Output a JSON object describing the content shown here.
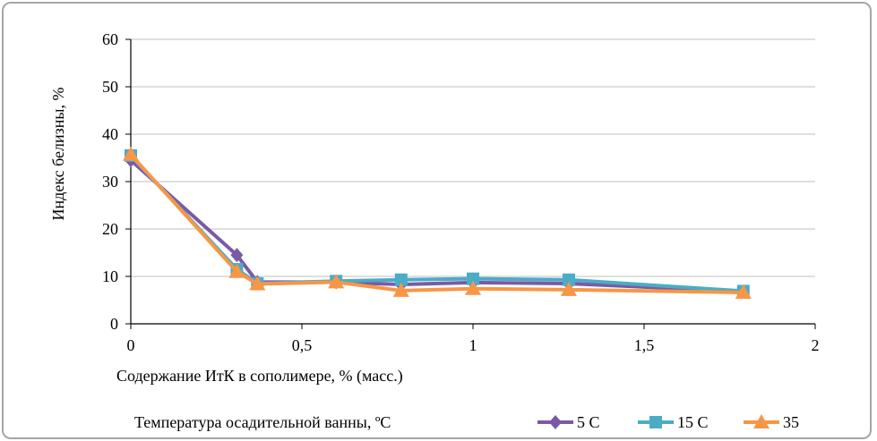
{
  "chart_data": {
    "type": "line",
    "ylabel": "Индекс белизны, %",
    "xlabel": "Содержание ИтК в сополимере, % (масс.)",
    "legend_title": "Температура осадительной ванны, ºС",
    "xlim": [
      0,
      2
    ],
    "ylim": [
      0,
      60
    ],
    "x_ticks": [
      0,
      0.5,
      1,
      1.5,
      2
    ],
    "x_tick_labels": [
      "0",
      "0,5",
      "1",
      "1,5",
      "2"
    ],
    "y_ticks": [
      0,
      10,
      20,
      30,
      40,
      50,
      60
    ],
    "y_tick_labels": [
      "0",
      "10",
      "20",
      "30",
      "40",
      "50",
      "60"
    ],
    "grid": "horizontal",
    "legend_position": "bottom-right",
    "series": [
      {
        "name": "5 С",
        "color": "#7a5aa6",
        "marker": "diamond",
        "points": [
          [
            0,
            34.5
          ],
          [
            0.31,
            14.5
          ],
          [
            0.37,
            8.8
          ],
          [
            0.6,
            8.8
          ],
          [
            0.79,
            8.3
          ],
          [
            1.0,
            8.7
          ],
          [
            1.28,
            8.5
          ],
          [
            1.79,
            6.8
          ]
        ]
      },
      {
        "name": "15 С",
        "color": "#4bacc6",
        "marker": "square",
        "points": [
          [
            0,
            35.5
          ],
          [
            0.31,
            11.5
          ],
          [
            0.37,
            8.5
          ],
          [
            0.6,
            9.0
          ],
          [
            0.79,
            9.3
          ],
          [
            1.0,
            9.5
          ],
          [
            1.28,
            9.3
          ],
          [
            1.79,
            6.9
          ]
        ]
      },
      {
        "name": "35",
        "color": "#f79646",
        "marker": "triangle",
        "points": [
          [
            0,
            35.7
          ],
          [
            0.31,
            11.0
          ],
          [
            0.37,
            8.4
          ],
          [
            0.6,
            8.8
          ],
          [
            0.79,
            7.0
          ],
          [
            1.0,
            7.4
          ],
          [
            1.28,
            7.2
          ],
          [
            1.79,
            6.6
          ]
        ]
      }
    ]
  }
}
